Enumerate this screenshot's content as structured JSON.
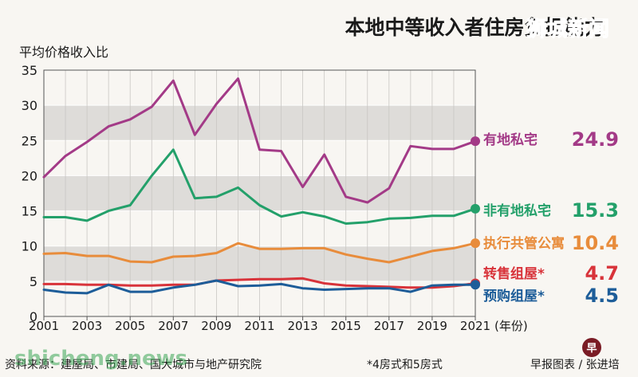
{
  "header": {
    "title": "本地中等收入者住房负担能力",
    "watermark_top": "狮城新闻"
  },
  "chart_data": {
    "type": "line",
    "title": "本地中等收入者住房负担能力",
    "ylabel": "平均价格收入比",
    "xlabel": "(年份)",
    "ylim": [
      0,
      35
    ],
    "yticks": [
      0,
      5,
      10,
      15,
      20,
      25,
      30,
      35
    ],
    "xtick_labels": [
      "2001",
      "2003",
      "2005",
      "2007",
      "2009",
      "2011",
      "2013",
      "2015",
      "2017",
      "2019",
      "2021"
    ],
    "x": [
      2001,
      2002,
      2003,
      2004,
      2005,
      2006,
      2007,
      2008,
      2009,
      2010,
      2011,
      2012,
      2013,
      2014,
      2015,
      2016,
      2017,
      2018,
      2019,
      2020,
      2021
    ],
    "series": [
      {
        "name": "有地私宅",
        "final_label": "24.9",
        "color": "#a33a87",
        "values": [
          19.8,
          22.8,
          24.8,
          27.0,
          28.0,
          29.8,
          33.5,
          25.8,
          30.2,
          33.8,
          23.7,
          23.5,
          18.4,
          23.0,
          17.0,
          16.2,
          18.2,
          24.2,
          23.8,
          23.8,
          24.9
        ]
      },
      {
        "name": "非有地私宅",
        "final_label": "15.3",
        "color": "#23a06a",
        "values": [
          14.1,
          14.1,
          13.6,
          15.0,
          15.8,
          20.0,
          23.7,
          16.8,
          17.0,
          18.3,
          15.8,
          14.2,
          14.8,
          14.2,
          13.2,
          13.4,
          13.9,
          14.0,
          14.3,
          14.3,
          15.3
        ]
      },
      {
        "name": "执行共管公寓",
        "final_label": "10.4",
        "color": "#e88c3b",
        "values": [
          8.9,
          9.0,
          8.6,
          8.6,
          7.8,
          7.7,
          8.5,
          8.6,
          9.0,
          10.4,
          9.6,
          9.6,
          9.7,
          9.7,
          8.8,
          8.2,
          7.7,
          8.5,
          9.3,
          9.7,
          10.4
        ]
      },
      {
        "name": "转售组屋*",
        "final_label": "4.7",
        "color": "#d8333a",
        "values": [
          4.6,
          4.6,
          4.5,
          4.5,
          4.4,
          4.4,
          4.5,
          4.5,
          5.1,
          5.2,
          5.3,
          5.3,
          5.4,
          4.7,
          4.4,
          4.3,
          4.2,
          4.1,
          4.1,
          4.3,
          4.7
        ]
      },
      {
        "name": "预购组屋*",
        "final_label": "4.5",
        "color": "#1d5d99",
        "values": [
          3.8,
          3.4,
          3.3,
          4.5,
          3.5,
          3.5,
          4.1,
          4.5,
          5.1,
          4.3,
          4.4,
          4.6,
          4.0,
          3.8,
          3.9,
          4.0,
          4.0,
          3.5,
          4.4,
          4.5,
          4.5
        ]
      }
    ]
  },
  "footer": {
    "source": "资料来源：建屋局、市建局、国大城市与地产研究院",
    "note": "*4房式和5房式",
    "credit": "早报图表 / 张进培",
    "logo_char": "早",
    "watermark_bottom": "shicheng.news"
  }
}
